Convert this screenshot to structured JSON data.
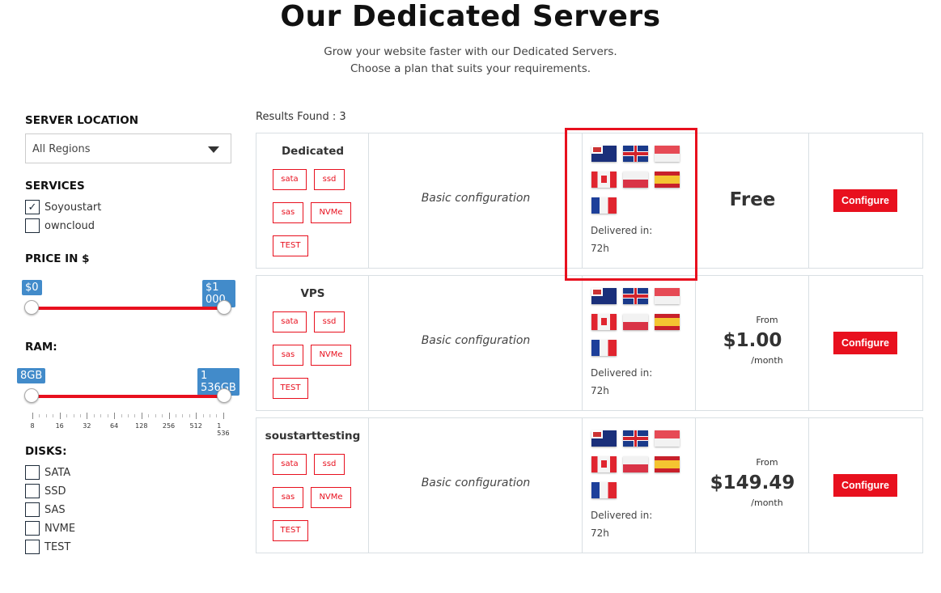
{
  "header": {
    "title": "Our Dedicated Servers",
    "subtitle_line1": "Grow your website faster with our Dedicated Servers.",
    "subtitle_line2": "Choose a plan that suits your requirements."
  },
  "sidebar": {
    "location": {
      "label": "SERVER LOCATION",
      "value": "All Regions"
    },
    "services": {
      "label": "SERVICES",
      "items": [
        {
          "label": "Soyoustart",
          "checked": true
        },
        {
          "label": "owncloud",
          "checked": false
        }
      ]
    },
    "price": {
      "label": "PRICE IN $",
      "min_label": "$0",
      "max_label": "$1 000",
      "min": 0,
      "max": 1000
    },
    "ram": {
      "label": "RAM:",
      "min_label": "8GB",
      "max_label": "1 536GB",
      "ticks": [
        "8",
        "16",
        "32",
        "64",
        "128",
        "256",
        "512",
        "1 536"
      ]
    },
    "disks": {
      "label": "DISKS:",
      "items": [
        {
          "label": "SATA",
          "checked": false
        },
        {
          "label": "SSD",
          "checked": false
        },
        {
          "label": "SAS",
          "checked": false
        },
        {
          "label": "NVME",
          "checked": false
        },
        {
          "label": "TEST",
          "checked": false
        }
      ]
    }
  },
  "results": {
    "label": "Results Found : 3"
  },
  "plans": [
    {
      "name": "Dedicated",
      "disks": [
        "sata",
        "ssd",
        "sas",
        "NVMe",
        "TEST"
      ],
      "config": "Basic configuration",
      "flags": [
        "australia",
        "uk",
        "singapore",
        "canada",
        "poland",
        "spain",
        "france"
      ],
      "delivered_label": "Delivered in:",
      "delivered": "72h",
      "price_prefix": "",
      "price": "Free",
      "price_suffix": "",
      "button": "Configure"
    },
    {
      "name": "VPS",
      "disks": [
        "sata",
        "ssd",
        "sas",
        "NVMe",
        "TEST"
      ],
      "config": "Basic configuration",
      "flags": [
        "australia",
        "uk",
        "singapore",
        "canada",
        "poland",
        "spain",
        "france"
      ],
      "delivered_label": "Delivered in:",
      "delivered": "72h",
      "price_prefix": "From",
      "price": "$1.00",
      "price_suffix": "/month",
      "button": "Configure"
    },
    {
      "name": "soustarttesting",
      "disks": [
        "sata",
        "ssd",
        "sas",
        "NVMe",
        "TEST"
      ],
      "config": "Basic configuration",
      "flags": [
        "australia",
        "uk",
        "singapore",
        "canada",
        "poland",
        "spain",
        "france"
      ],
      "delivered_label": "Delivered in:",
      "delivered": "72h",
      "price_prefix": "From",
      "price": "$149.49",
      "price_suffix": "/month",
      "button": "Configure"
    }
  ],
  "colors": {
    "accent": "#e8101e",
    "slider_tag": "#428bca",
    "highlight": "#e8101e"
  }
}
